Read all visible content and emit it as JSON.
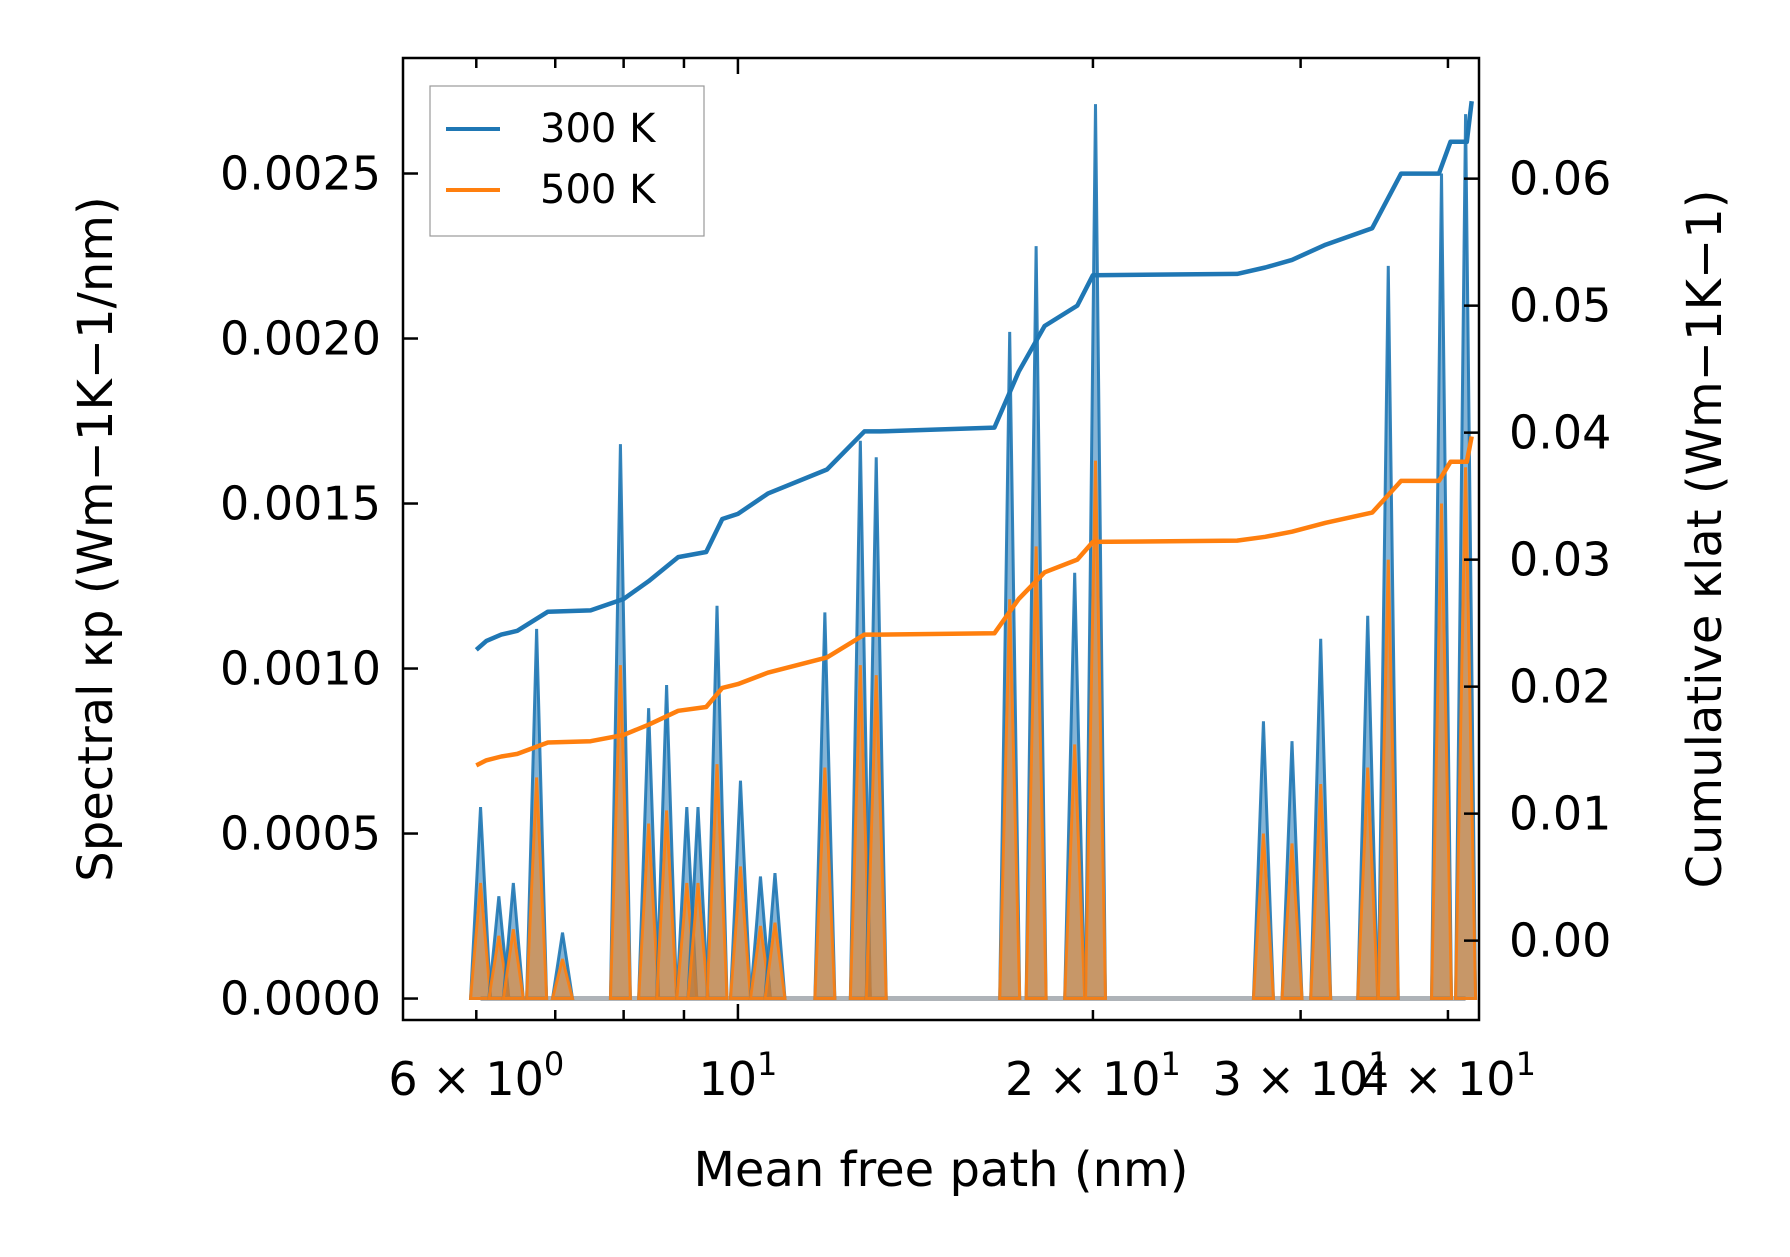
{
  "chart_data": {
    "type": "line",
    "title": "",
    "xlabel": "Mean free path (nm)",
    "ylabel_left": "Spectral κp (Wm−1K−1/nm)",
    "ylabel_right": "Cumulative κlat (Wm−1K−1)",
    "x_scale": "log",
    "xlim": [
      5.2,
      42.5
    ],
    "ylim_left": [
      -6.5e-05,
      0.00285
    ],
    "ylim_right": [
      -0.00625,
      0.0695
    ],
    "x_ticks": [
      {
        "value": 6,
        "base": "6 × 10",
        "exp": "0"
      },
      {
        "value": 10,
        "base": "10",
        "exp": "1"
      },
      {
        "value": 20,
        "base": "2 × 10",
        "exp": "1"
      },
      {
        "value": 30,
        "base": "3 × 10",
        "exp": "1"
      },
      {
        "value": 40,
        "base": "4 × 10",
        "exp": "1"
      }
    ],
    "y_ticks_left": [
      "0.0000",
      "0.0005",
      "0.0010",
      "0.0015",
      "0.0020",
      "0.0025"
    ],
    "y_ticks_right": [
      "0.00",
      "0.01",
      "0.02",
      "0.03",
      "0.04",
      "0.05",
      "0.06"
    ],
    "legend": {
      "position": "upper-left",
      "entries": [
        "300 K",
        "500 K"
      ]
    },
    "colors": {
      "300 K": "#1f77b4",
      "500 K": "#ff7f0e"
    },
    "spectral_peaks": [
      {
        "x": 6.05,
        "k300": 0.00058,
        "k500": 0.00035
      },
      {
        "x": 6.27,
        "k300": 0.00031,
        "k500": 0.00019
      },
      {
        "x": 6.45,
        "k300": 0.00035,
        "k500": 0.00021
      },
      {
        "x": 6.75,
        "k300": 0.00112,
        "k500": 0.00067
      },
      {
        "x": 7.1,
        "k300": 0.0002,
        "k500": 0.00012
      },
      {
        "x": 7.95,
        "k300": 0.00168,
        "k500": 0.00101
      },
      {
        "x": 8.4,
        "k300": 0.00088,
        "k500": 0.00053
      },
      {
        "x": 8.7,
        "k300": 0.00095,
        "k500": 0.00057
      },
      {
        "x": 9.05,
        "k300": 0.00058,
        "k500": 0.00035
      },
      {
        "x": 9.25,
        "k300": 0.00058,
        "k500": 0.00035
      },
      {
        "x": 9.6,
        "k300": 0.00119,
        "k500": 0.00071
      },
      {
        "x": 10.05,
        "k300": 0.00066,
        "k500": 0.0004
      },
      {
        "x": 10.45,
        "k300": 0.00037,
        "k500": 0.00022
      },
      {
        "x": 10.75,
        "k300": 0.00038,
        "k500": 0.00023
      },
      {
        "x": 11.85,
        "k300": 0.00117,
        "k500": 0.0007
      },
      {
        "x": 12.7,
        "k300": 0.00169,
        "k500": 0.00101
      },
      {
        "x": 13.1,
        "k300": 0.00164,
        "k500": 0.00098
      },
      {
        "x": 17.0,
        "k300": 0.00202,
        "k500": 0.00121
      },
      {
        "x": 17.9,
        "k300": 0.00228,
        "k500": 0.00137
      },
      {
        "x": 19.3,
        "k300": 0.00129,
        "k500": 0.00077
      },
      {
        "x": 20.1,
        "k300": 0.00271,
        "k500": 0.00163
      },
      {
        "x": 27.9,
        "k300": 0.00084,
        "k500": 0.0005
      },
      {
        "x": 29.5,
        "k300": 0.00078,
        "k500": 0.00047
      },
      {
        "x": 31.2,
        "k300": 0.00109,
        "k500": 0.00065
      },
      {
        "x": 34.2,
        "k300": 0.00116,
        "k500": 0.0007
      },
      {
        "x": 35.6,
        "k300": 0.00222,
        "k500": 0.00133
      },
      {
        "x": 39.5,
        "k300": 0.0025,
        "k500": 0.0015
      },
      {
        "x": 41.4,
        "k300": 0.00268,
        "k500": 0.00161
      }
    ],
    "series": [
      {
        "name": "300 K cumulative",
        "axis": "right",
        "points": [
          [
            6.0,
            0.0229
          ],
          [
            6.12,
            0.0236
          ],
          [
            6.3,
            0.0241
          ],
          [
            6.5,
            0.0244
          ],
          [
            6.9,
            0.0259
          ],
          [
            7.5,
            0.026
          ],
          [
            8.0,
            0.0269
          ],
          [
            8.4,
            0.0283
          ],
          [
            8.9,
            0.0302
          ],
          [
            9.4,
            0.0306
          ],
          [
            9.7,
            0.0332
          ],
          [
            10.0,
            0.0336
          ],
          [
            10.6,
            0.0352
          ],
          [
            11.9,
            0.0371
          ],
          [
            12.8,
            0.0401
          ],
          [
            13.2,
            0.0401
          ],
          [
            16.5,
            0.0404
          ],
          [
            17.3,
            0.0448
          ],
          [
            18.2,
            0.0484
          ],
          [
            19.4,
            0.05
          ],
          [
            20.0,
            0.0524
          ],
          [
            26.5,
            0.0525
          ],
          [
            28.0,
            0.053
          ],
          [
            29.5,
            0.0536
          ],
          [
            31.5,
            0.0548
          ],
          [
            34.5,
            0.0561
          ],
          [
            36.5,
            0.0604
          ],
          [
            39.3,
            0.0604
          ],
          [
            40.2,
            0.0629
          ],
          [
            41.5,
            0.0629
          ],
          [
            41.9,
            0.0661
          ]
        ]
      },
      {
        "name": "500 K cumulative",
        "axis": "right",
        "points": [
          [
            6.0,
            0.0138
          ],
          [
            6.12,
            0.0142
          ],
          [
            6.3,
            0.0145
          ],
          [
            6.5,
            0.0147
          ],
          [
            6.9,
            0.0156
          ],
          [
            7.5,
            0.0157
          ],
          [
            8.0,
            0.0162
          ],
          [
            8.4,
            0.017
          ],
          [
            8.9,
            0.0181
          ],
          [
            9.4,
            0.0184
          ],
          [
            9.7,
            0.0199
          ],
          [
            10.0,
            0.0202
          ],
          [
            10.6,
            0.0211
          ],
          [
            11.9,
            0.0223
          ],
          [
            12.8,
            0.0241
          ],
          [
            13.2,
            0.0241
          ],
          [
            16.5,
            0.0242
          ],
          [
            17.3,
            0.0269
          ],
          [
            18.2,
            0.029
          ],
          [
            19.4,
            0.03
          ],
          [
            20.0,
            0.0314
          ],
          [
            26.5,
            0.0315
          ],
          [
            28.0,
            0.0318
          ],
          [
            29.5,
            0.0322
          ],
          [
            31.5,
            0.0329
          ],
          [
            34.5,
            0.0337
          ],
          [
            36.5,
            0.0362
          ],
          [
            39.3,
            0.0362
          ],
          [
            40.2,
            0.0377
          ],
          [
            41.5,
            0.0377
          ],
          [
            41.9,
            0.0397
          ]
        ]
      }
    ]
  }
}
